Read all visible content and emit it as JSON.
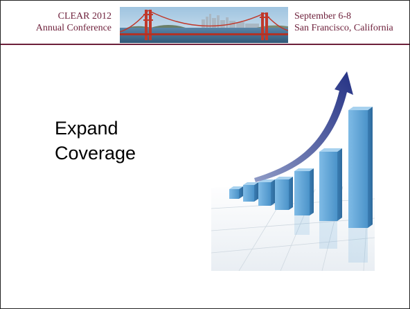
{
  "header": {
    "left_line1": "CLEAR 2012",
    "left_line2": "Annual Conference",
    "right_line1": "September 6-8",
    "right_line2": "San Francisco, California",
    "photo": "golden-gate-bridge-photo",
    "accent_color": "#6d1f3a"
  },
  "slide": {
    "title_line1": "Expand",
    "title_line2": "Coverage"
  },
  "illustration": {
    "name": "growth-bar-chart-with-arrow",
    "bar_color": "#5fa6d8",
    "arrow_color": "#2f3c87"
  }
}
